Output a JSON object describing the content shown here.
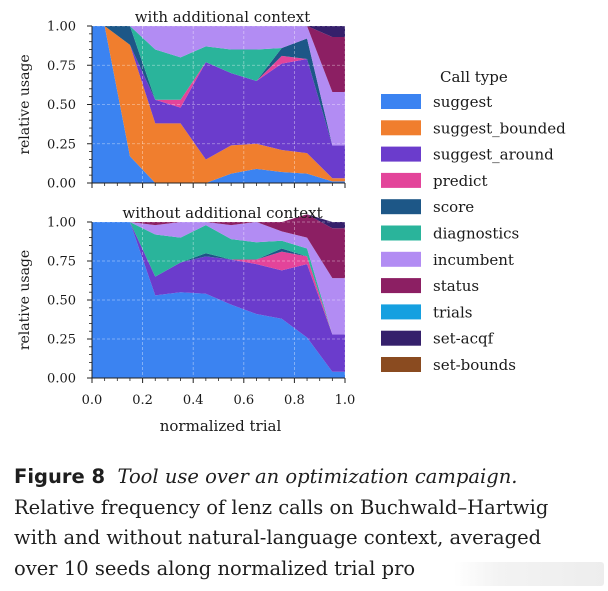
{
  "chart_data": {
    "type": "area",
    "x": [
      0.0,
      0.05,
      0.15,
      0.25,
      0.35,
      0.45,
      0.55,
      0.65,
      0.75,
      0.85,
      0.95,
      1.0
    ],
    "xlabel": "normalized trial",
    "ylabel": "relative usage",
    "xlim": [
      0,
      1
    ],
    "ylim": [
      0,
      1
    ],
    "xticks": [
      "0.0",
      "0.2",
      "0.4",
      "0.6",
      "0.8",
      "1.0"
    ],
    "yticks": [
      "0.00",
      "0.25",
      "0.50",
      "0.75",
      "1.00"
    ],
    "grid": true,
    "stacked": true,
    "legend": {
      "title": "Call type",
      "placement": "right"
    },
    "panels": [
      {
        "title": "with additional context",
        "series": [
          {
            "name": "suggest",
            "values": [
              1.0,
              1.0,
              0.17,
              0.0,
              0.0,
              0.0,
              0.06,
              0.09,
              0.07,
              0.06,
              0.01,
              0.01
            ]
          },
          {
            "name": "suggest_bounded",
            "values": [
              0.0,
              0.0,
              0.71,
              0.38,
              0.38,
              0.15,
              0.18,
              0.16,
              0.14,
              0.13,
              0.02,
              0.02
            ]
          },
          {
            "name": "suggest_around",
            "values": [
              0.0,
              0.0,
              0.0,
              0.15,
              0.1,
              0.62,
              0.46,
              0.4,
              0.55,
              0.6,
              0.21,
              0.21
            ]
          },
          {
            "name": "predict",
            "values": [
              0.0,
              0.0,
              0.0,
              0.0,
              0.05,
              0.0,
              0.0,
              0.0,
              0.05,
              0.0,
              0.0,
              0.0
            ]
          },
          {
            "name": "score",
            "values": [
              0.0,
              0.0,
              0.12,
              0.0,
              0.0,
              0.0,
              0.0,
              0.0,
              0.05,
              0.13,
              0.0,
              0.0
            ]
          },
          {
            "name": "diagnostics",
            "values": [
              0.0,
              0.0,
              0.0,
              0.32,
              0.27,
              0.1,
              0.15,
              0.2,
              0.0,
              0.0,
              0.0,
              0.0
            ]
          },
          {
            "name": "incumbent",
            "values": [
              0.0,
              0.0,
              0.0,
              0.15,
              0.2,
              0.13,
              0.15,
              0.15,
              0.14,
              0.08,
              0.34,
              0.34
            ]
          },
          {
            "name": "status",
            "values": [
              0.0,
              0.0,
              0.0,
              0.0,
              0.0,
              0.0,
              0.0,
              0.0,
              0.0,
              0.0,
              0.35,
              0.35
            ]
          },
          {
            "name": "trials",
            "values": [
              0.0,
              0.0,
              0.0,
              0.0,
              0.0,
              0.0,
              0.0,
              0.0,
              0.0,
              0.0,
              0.0,
              0.0
            ]
          },
          {
            "name": "set-acqf",
            "values": [
              0.0,
              0.0,
              0.0,
              0.0,
              0.0,
              0.0,
              0.0,
              0.0,
              0.0,
              0.0,
              0.07,
              0.07
            ]
          },
          {
            "name": "set-bounds",
            "values": [
              0.0,
              0.0,
              0.0,
              0.0,
              0.0,
              0.0,
              0.0,
              0.0,
              0.0,
              0.0,
              0.0,
              0.0
            ]
          }
        ]
      },
      {
        "title": "without additional context",
        "series": [
          {
            "name": "suggest",
            "values": [
              1.0,
              1.0,
              1.0,
              0.53,
              0.55,
              0.54,
              0.47,
              0.41,
              0.38,
              0.26,
              0.04,
              0.04
            ]
          },
          {
            "name": "suggest_bounded",
            "values": [
              0.0,
              0.0,
              0.0,
              0.0,
              0.0,
              0.0,
              0.0,
              0.0,
              0.0,
              0.0,
              0.0,
              0.0
            ]
          },
          {
            "name": "suggest_around",
            "values": [
              0.0,
              0.0,
              0.0,
              0.12,
              0.19,
              0.24,
              0.29,
              0.32,
              0.31,
              0.47,
              0.24,
              0.24
            ]
          },
          {
            "name": "predict",
            "values": [
              0.0,
              0.0,
              0.0,
              0.0,
              0.0,
              0.0,
              0.0,
              0.03,
              0.12,
              0.05,
              0.0,
              0.0
            ]
          },
          {
            "name": "score",
            "values": [
              0.0,
              0.0,
              0.0,
              0.0,
              0.0,
              0.02,
              0.0,
              0.0,
              0.02,
              0.0,
              0.0,
              0.0
            ]
          },
          {
            "name": "diagnostics",
            "values": [
              0.0,
              0.0,
              0.0,
              0.27,
              0.16,
              0.18,
              0.13,
              0.11,
              0.05,
              0.05,
              0.0,
              0.0
            ]
          },
          {
            "name": "incumbent",
            "values": [
              0.0,
              0.0,
              0.0,
              0.06,
              0.1,
              0.02,
              0.09,
              0.13,
              0.06,
              0.07,
              0.36,
              0.36
            ]
          },
          {
            "name": "status",
            "values": [
              0.0,
              0.0,
              0.0,
              0.02,
              0.0,
              0.0,
              0.02,
              0.0,
              0.06,
              0.15,
              0.32,
              0.32
            ]
          },
          {
            "name": "trials",
            "values": [
              0.0,
              0.0,
              0.0,
              0.0,
              0.0,
              0.0,
              0.0,
              0.0,
              0.0,
              0.0,
              0.0,
              0.0
            ]
          },
          {
            "name": "set-acqf",
            "values": [
              0.0,
              0.0,
              0.0,
              0.0,
              0.0,
              0.0,
              0.0,
              0.0,
              0.0,
              0.0,
              0.04,
              0.04
            ]
          },
          {
            "name": "set-bounds",
            "values": [
              0.0,
              0.0,
              0.0,
              0.0,
              0.0,
              0.0,
              0.0,
              0.0,
              0.0,
              0.0,
              0.0,
              0.0
            ]
          }
        ]
      }
    ]
  },
  "legend_items": [
    {
      "name": "suggest",
      "label": "suggest",
      "color": "#3b83f1"
    },
    {
      "name": "suggest_bounded",
      "label": "suggest_bounded",
      "color": "#f07e2e"
    },
    {
      "name": "suggest_around",
      "label": "suggest_around",
      "color": "#6b3ccc"
    },
    {
      "name": "predict",
      "label": "predict",
      "color": "#e3449a"
    },
    {
      "name": "score",
      "label": "score",
      "color": "#1d5787"
    },
    {
      "name": "diagnostics",
      "label": "diagnostics",
      "color": "#2ab49b"
    },
    {
      "name": "incumbent",
      "label": "incumbent",
      "color": "#b28cf3"
    },
    {
      "name": "status",
      "label": "status",
      "color": "#8c1f63"
    },
    {
      "name": "trials",
      "label": "trials",
      "color": "#15a0e0"
    },
    {
      "name": "set-acqf",
      "label": "set-acqf",
      "color": "#35206b"
    },
    {
      "name": "set-bounds",
      "label": "set-bounds",
      "color": "#8a4b20"
    }
  ],
  "caption": {
    "label": "Figure 8",
    "title": "Tool use over an optimization campaign.",
    "line2": "Relative frequency of lenz calls on Buchwald–Hartwig",
    "line3": "with and without natural-language context, averaged",
    "line4": "over 10 seeds along normalized trial pro"
  }
}
